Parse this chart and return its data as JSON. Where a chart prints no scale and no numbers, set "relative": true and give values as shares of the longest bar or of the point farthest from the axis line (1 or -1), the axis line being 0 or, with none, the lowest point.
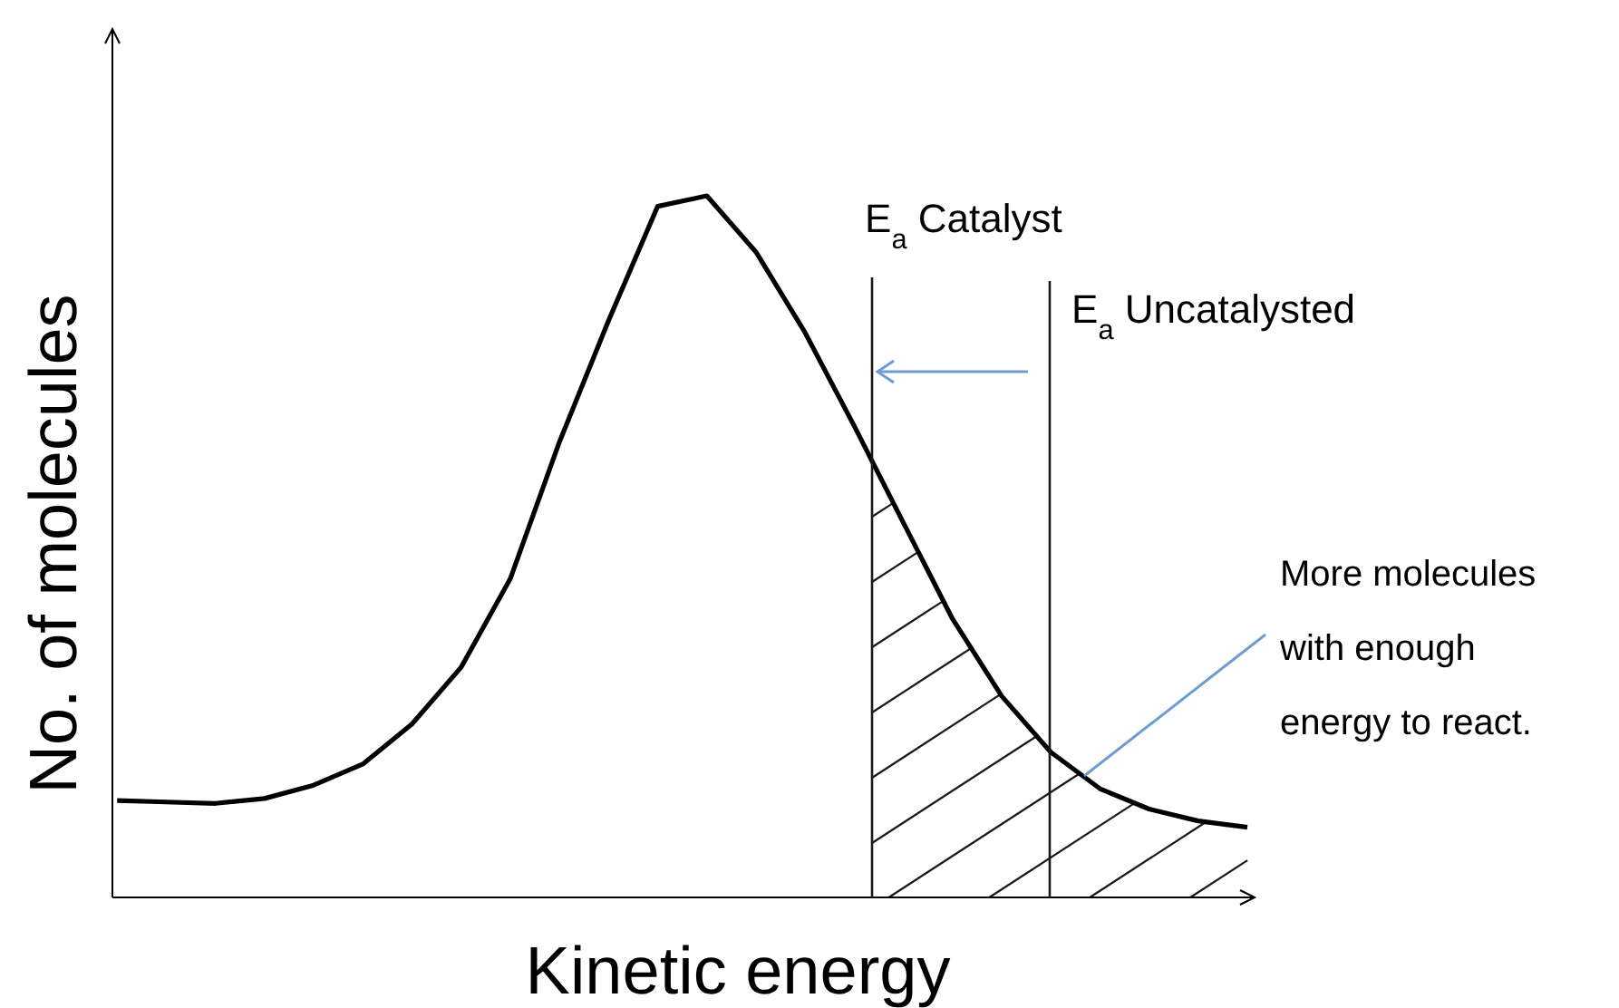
{
  "chart_data": {
    "type": "line",
    "relative": true,
    "xlabel": "Kinetic energy",
    "ylabel": "No. of molecules",
    "categories": [
      null,
      null,
      null,
      null,
      null,
      null,
      null,
      null,
      null,
      null,
      null,
      null,
      null,
      null,
      null,
      null,
      null,
      null,
      null,
      null,
      null,
      null,
      null,
      null
    ],
    "series": [
      {
        "color": "#000000",
        "values": [
          0.138,
          0.136,
          0.134,
          0.141,
          0.16,
          0.19,
          0.247,
          0.328,
          0.454,
          0.649,
          0.822,
          0.985,
          1,
          0.92,
          0.805,
          0.672,
          0.534,
          0.397,
          0.287,
          0.207,
          0.155,
          0.126,
          0.109,
          0.1
        ]
      }
    ],
    "annotations": [
      "E$_{a}$ Catalyst",
      "E$_{a}$ Uncatalysted",
      "More molecules with enough energy to react."
    ],
    "marker": "none",
    "line_style": "solid"
  }
}
